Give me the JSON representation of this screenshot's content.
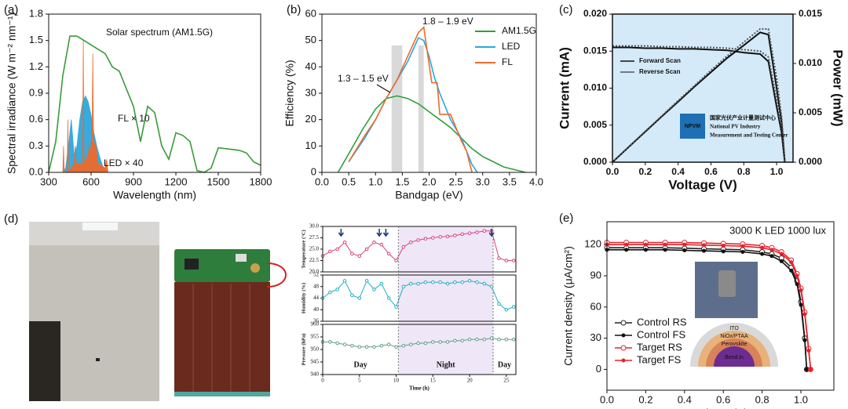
{
  "chart_data": [
    {
      "panel": "(a)",
      "type": "line",
      "xlabel": "Wavelength (nm)",
      "ylabel": "Spectral irradiance (W m⁻² nm⁻¹)",
      "xlim": [
        300,
        1800
      ],
      "xticks": [
        300,
        600,
        900,
        1200,
        1500,
        1800
      ],
      "ylim": [
        0,
        1.8
      ],
      "yticks": [
        {
          "value": 0,
          "label": "0.0"
        },
        0.3,
        0.6,
        0.9,
        1.2,
        1.5,
        1.8
      ],
      "series": [
        {
          "name": "Solar spectrum (AM1.5G)",
          "color": "#3a9a3a",
          "style": "line",
          "x": [
            300,
            350,
            400,
            450,
            500,
            550,
            600,
            650,
            700,
            750,
            800,
            850,
            900,
            950,
            1000,
            1050,
            1100,
            1150,
            1200,
            1250,
            1300,
            1350,
            1400,
            1450,
            1500,
            1550,
            1600,
            1650,
            1700,
            1750,
            1800
          ],
          "values": [
            0,
            0.35,
            1.1,
            1.55,
            1.55,
            1.5,
            1.45,
            1.4,
            1.35,
            1.2,
            1.15,
            0.95,
            0.75,
            0.35,
            0.75,
            0.68,
            0.3,
            0.15,
            0.45,
            0.42,
            0.35,
            0.02,
            0,
            0.05,
            0.28,
            0.27,
            0.26,
            0.25,
            0.22,
            0.12,
            0.08
          ]
        },
        {
          "name": "LED × 40",
          "color": "#29a8e0",
          "style": "area",
          "x": [
            400,
            420,
            440,
            460,
            480,
            500,
            520,
            540,
            560,
            580,
            600,
            620,
            640,
            660,
            680,
            700
          ],
          "values": [
            0,
            0.05,
            0.3,
            0.6,
            0.2,
            0.3,
            0.6,
            0.8,
            0.87,
            0.8,
            0.65,
            0.45,
            0.3,
            0.18,
            0.08,
            0.02
          ]
        },
        {
          "name": "FL × 10",
          "color": "#ee6a2c",
          "style": "area",
          "x": [
            400,
            405,
            410,
            430,
            436,
            440,
            480,
            488,
            495,
            540,
            545,
            550,
            580,
            590,
            600,
            607,
            612,
            617,
            630,
            650,
            700,
            710,
            720
          ],
          "values": [
            0,
            0.3,
            0,
            0,
            0.6,
            0,
            0.1,
            0.3,
            0.1,
            0.1,
            1.5,
            0.1,
            0.2,
            0.35,
            0.2,
            0.5,
            1.35,
            0.3,
            0.35,
            0.1,
            0.05,
            0.15,
            0
          ]
        }
      ]
    },
    {
      "panel": "(b)",
      "type": "line",
      "xlabel": "Bandgap (eV)",
      "ylabel": "Efficiency (%)",
      "xlim": [
        0,
        4
      ],
      "xticks": [
        {
          "value": 0,
          "label": "0.0"
        },
        0.5,
        {
          "value": 1,
          "label": "1.0"
        },
        1.5,
        {
          "value": 2,
          "label": "2.0"
        },
        2.5,
        {
          "value": 3,
          "label": "3.0"
        },
        3.5,
        {
          "value": 4,
          "label": "4.0"
        }
      ],
      "ylim": [
        0,
        60
      ],
      "yticks": [
        0,
        10,
        20,
        30,
        40,
        50,
        60
      ],
      "legend": "top-right",
      "shaded_ranges": [
        {
          "range": [
            1.3,
            1.5
          ],
          "label": "1.3 – 1.5 eV"
        },
        {
          "range": [
            1.8,
            1.9
          ],
          "label": "1.8 – 1.9 eV"
        }
      ],
      "series": [
        {
          "name": "AM1.5G",
          "color": "#2e9e3e",
          "x": [
            0.3,
            0.5,
            0.75,
            1.0,
            1.2,
            1.4,
            1.6,
            1.8,
            2.0,
            2.2,
            2.4,
            2.6,
            2.8,
            3.0,
            3.2,
            3.4,
            3.6,
            3.8
          ],
          "values": [
            0,
            7,
            16,
            24,
            28,
            29,
            28,
            26,
            23,
            20,
            17,
            13,
            9,
            6,
            4,
            2,
            1,
            0
          ]
        },
        {
          "name": "LED",
          "color": "#29a8e0",
          "x": [
            0.5,
            0.8,
            1.0,
            1.2,
            1.4,
            1.6,
            1.8,
            1.9,
            2.0,
            2.1,
            2.2,
            2.4,
            2.6,
            2.8,
            2.9
          ],
          "values": [
            4,
            13,
            20,
            28,
            35,
            42,
            51,
            50,
            44,
            36,
            30,
            20,
            13,
            3,
            0
          ]
        },
        {
          "name": "FL",
          "color": "#ee6a2c",
          "x": [
            0.5,
            0.8,
            1.0,
            1.2,
            1.4,
            1.6,
            1.8,
            1.9,
            1.95,
            2.05,
            2.15,
            2.2,
            2.4,
            2.6,
            2.7,
            2.8
          ],
          "values": [
            4,
            14,
            20,
            28,
            35,
            44,
            53,
            55,
            48,
            34,
            34,
            22,
            22,
            12,
            8,
            0
          ]
        }
      ]
    },
    {
      "panel": "(c)",
      "type": "line",
      "xlabel": "Voltage (V)",
      "ylabel": "Current (mA)",
      "y2label": "Power (mW)",
      "background": "#d4eaf9",
      "xlim": [
        0,
        1.1
      ],
      "xticks": [
        {
          "value": 0,
          "label": "0.0"
        },
        0.2,
        0.4,
        0.6,
        0.8,
        {
          "value": 1,
          "label": "1.0"
        }
      ],
      "ylim": [
        0,
        0.02
      ],
      "yticks": [
        {
          "value": 0,
          "label": "0.000"
        },
        {
          "value": 0.005,
          "label": "0.005"
        },
        {
          "value": 0.01,
          "label": "0.010"
        },
        {
          "value": 0.015,
          "label": "0.015"
        },
        {
          "value": 0.02,
          "label": "0.020"
        }
      ],
      "y2lim": [
        0,
        0.015
      ],
      "y2ticks": [
        {
          "value": 0,
          "label": "0.000"
        },
        {
          "value": 0.005,
          "label": "0.005"
        },
        {
          "value": 0.01,
          "label": "0.010"
        },
        {
          "value": 0.015,
          "label": "0.015"
        }
      ],
      "x": [
        0,
        0.1,
        0.2,
        0.3,
        0.4,
        0.5,
        0.6,
        0.7,
        0.8,
        0.9,
        0.95,
        1.0,
        1.03,
        1.05
      ],
      "series": [
        {
          "name": "Forward Scan",
          "color": "#111111",
          "values": [
            0.0155,
            0.0155,
            0.0154,
            0.0154,
            0.0153,
            0.0153,
            0.0152,
            0.0151,
            0.0148,
            0.0146,
            0.0136,
            0.0075,
            0.004,
            0
          ]
        },
        {
          "name": "Reverse Scan",
          "color": "#555555",
          "dash": true,
          "values": [
            0.0157,
            0.0157,
            0.0157,
            0.0156,
            0.0156,
            0.0155,
            0.0155,
            0.0154,
            0.0152,
            0.015,
            0.0142,
            0.0085,
            0.0045,
            0
          ]
        },
        {
          "axis": "y2",
          "color": "#111111",
          "values": [
            0,
            0.00155,
            0.00308,
            0.00462,
            0.00612,
            0.00765,
            0.00912,
            0.01057,
            0.01184,
            0.01314,
            0.01292,
            0.0075,
            0.00412,
            0
          ]
        },
        {
          "axis": "y2",
          "color": "#555555",
          "dash": true,
          "values": [
            0,
            0.00157,
            0.00314,
            0.00468,
            0.00624,
            0.00775,
            0.0093,
            0.01078,
            0.01216,
            0.0135,
            0.01349,
            0.0085,
            0.00464,
            0
          ]
        }
      ],
      "logo": {
        "mark": "NPVM",
        "lines": [
          "国家光伏产业计量测试中心",
          "National PV Industry",
          "Measurement and Testing Center"
        ]
      }
    },
    {
      "panel": "(d)",
      "type": "line",
      "ylabel": "Temperature (°C)",
      "xlim": [
        0,
        26.3
      ],
      "ylim": [
        20,
        30
      ],
      "yticks": [
        {
          "value": 20,
          "label": "20.0"
        },
        22.5,
        {
          "value": 25,
          "label": "25.0"
        },
        27.5,
        {
          "value": 30,
          "label": "30.0"
        }
      ],
      "x": [
        0,
        1,
        2,
        3,
        4,
        5,
        6,
        7,
        8,
        9,
        10,
        11,
        12,
        13,
        14,
        15,
        16,
        17,
        18,
        19,
        20,
        21,
        22,
        23,
        24,
        25,
        26
      ],
      "arrows": [
        2.5,
        7.7,
        8.6,
        23
      ],
      "series": [
        {
          "color": "#d6437a",
          "values": [
            23.5,
            24.5,
            25,
            26.5,
            24,
            23.5,
            25,
            26.5,
            26,
            24,
            22.5,
            25.5,
            26.5,
            27,
            27.3,
            27.5,
            27.7,
            27.8,
            28,
            28.3,
            28.5,
            28.7,
            29,
            29,
            23,
            22.5,
            22.5
          ]
        }
      ]
    },
    {
      "type": "line",
      "ylabel": "Humidity (%)",
      "xlim": [
        0,
        26.3
      ],
      "ylim": [
        36,
        52
      ],
      "yticks": [
        36,
        40,
        44,
        48,
        52
      ],
      "x": [
        0,
        1,
        2,
        3,
        4,
        5,
        6,
        7,
        8,
        9,
        10,
        11,
        12,
        13,
        14,
        15,
        16,
        17,
        18,
        19,
        20,
        21,
        22,
        23,
        24,
        25,
        26
      ],
      "series": [
        {
          "color": "#22afc2",
          "values": [
            44,
            46,
            47,
            50,
            45,
            44,
            50,
            47,
            49,
            44,
            41,
            48,
            49,
            49,
            49.5,
            49.5,
            49.5,
            49,
            49.5,
            49.5,
            50,
            49.5,
            49,
            48,
            42,
            40,
            41
          ]
        }
      ]
    },
    {
      "type": "line",
      "ylabel": "Pressure (hPa)",
      "xlabel": "Time (h)",
      "xlim": [
        0,
        26.3
      ],
      "xticks": [
        0,
        5,
        10,
        15,
        20,
        25
      ],
      "ylim": [
        940,
        960
      ],
      "yticks": [
        940,
        945,
        950,
        955,
        960
      ],
      "night": [
        10.3,
        23.2
      ],
      "period_labels": [
        "Day",
        "Night",
        "Day"
      ],
      "x": [
        0,
        1,
        2,
        3,
        4,
        5,
        6,
        7,
        8,
        9,
        10,
        11,
        12,
        13,
        14,
        15,
        16,
        17,
        18,
        19,
        20,
        21,
        22,
        23,
        24,
        25,
        26
      ],
      "series": [
        {
          "color": "#5f9e86",
          "values": [
            953,
            953,
            952.5,
            952,
            951.5,
            951,
            951,
            951,
            951.5,
            952,
            951,
            951.5,
            952,
            952.5,
            952.5,
            953,
            953,
            953,
            953.5,
            953.5,
            954,
            954,
            954,
            954.5,
            954,
            954,
            954
          ]
        }
      ]
    },
    {
      "panel": "(e)",
      "type": "line",
      "title": "3000 K LED 1000 lux",
      "xlabel": "Voltage (V)",
      "ylabel": "Current density (μA/cm²)",
      "xlim": [
        0,
        1.17
      ],
      "xticks": [
        {
          "value": 0,
          "label": "0.0"
        },
        0.2,
        0.4,
        0.6,
        0.8,
        {
          "value": 1,
          "label": "1.0"
        }
      ],
      "ylim": [
        -20,
        142
      ],
      "yticks": [
        0,
        30,
        60,
        90,
        120
      ],
      "legend": "bottom-left",
      "inset_labels": [
        "ITO",
        "NiOx/PTAA",
        "Perovskite",
        "Bend in"
      ],
      "series": [
        {
          "name": "Control RS",
          "color": "#222222",
          "marker": "open",
          "x": [
            0,
            0.1,
            0.2,
            0.3,
            0.4,
            0.5,
            0.6,
            0.7,
            0.8,
            0.85,
            0.9,
            0.95,
            0.98,
            1.0,
            1.02,
            1.03
          ],
          "values": [
            117,
            117,
            117,
            117,
            116.5,
            116,
            115.5,
            115,
            113,
            111,
            107,
            98,
            85,
            65,
            30,
            0
          ]
        },
        {
          "name": "Control FS",
          "color": "#111111",
          "marker": "filled",
          "x": [
            0,
            0.1,
            0.2,
            0.3,
            0.4,
            0.5,
            0.6,
            0.7,
            0.8,
            0.85,
            0.9,
            0.95,
            0.98,
            1.0,
            1.02,
            1.03
          ],
          "values": [
            115,
            115,
            115,
            115,
            114.5,
            114,
            113.5,
            113,
            111,
            109,
            104,
            95,
            82,
            62,
            28,
            0
          ]
        },
        {
          "name": "Target RS",
          "color": "#e8202a",
          "marker": "open",
          "x": [
            0,
            0.1,
            0.2,
            0.3,
            0.4,
            0.5,
            0.6,
            0.7,
            0.8,
            0.85,
            0.9,
            0.95,
            0.98,
            1.0,
            1.02,
            1.04,
            1.05
          ],
          "values": [
            122,
            122,
            122,
            122,
            122,
            121.5,
            121,
            120.5,
            119,
            117,
            113,
            105,
            92,
            78,
            55,
            20,
            0
          ]
        },
        {
          "name": "Target FS",
          "color": "#e8202a",
          "marker": "filled",
          "x": [
            0,
            0.1,
            0.2,
            0.3,
            0.4,
            0.5,
            0.6,
            0.7,
            0.8,
            0.85,
            0.9,
            0.95,
            0.98,
            1.0,
            1.02,
            1.04,
            1.05
          ],
          "values": [
            120,
            120,
            120,
            120,
            120,
            119.5,
            119,
            118.5,
            117,
            115,
            111,
            103,
            90,
            76,
            53,
            18,
            0
          ]
        }
      ]
    }
  ]
}
